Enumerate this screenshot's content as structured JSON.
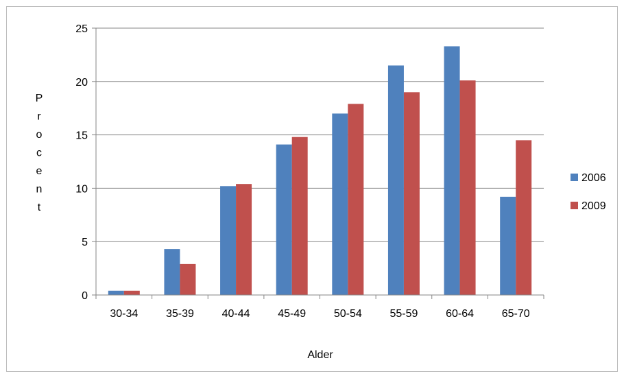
{
  "chart_data": {
    "type": "bar",
    "title": "",
    "xlabel": "Alder",
    "ylabel": "Procent",
    "ylim": [
      0,
      25
    ],
    "yticks": [
      0,
      5,
      10,
      15,
      20,
      25
    ],
    "grid": true,
    "legend_position": "right",
    "categories": [
      "30-34",
      "35-39",
      "40-44",
      "45-49",
      "50-54",
      "55-59",
      "60-64",
      "65-70"
    ],
    "series": [
      {
        "name": "2006",
        "color": "#4f81bd",
        "values": [
          0.4,
          4.3,
          10.2,
          14.1,
          17.0,
          21.5,
          23.3,
          9.2
        ]
      },
      {
        "name": "2009",
        "color": "#c0504d",
        "values": [
          0.4,
          2.9,
          10.4,
          14.8,
          17.9,
          19.0,
          20.1,
          14.5
        ]
      }
    ]
  }
}
